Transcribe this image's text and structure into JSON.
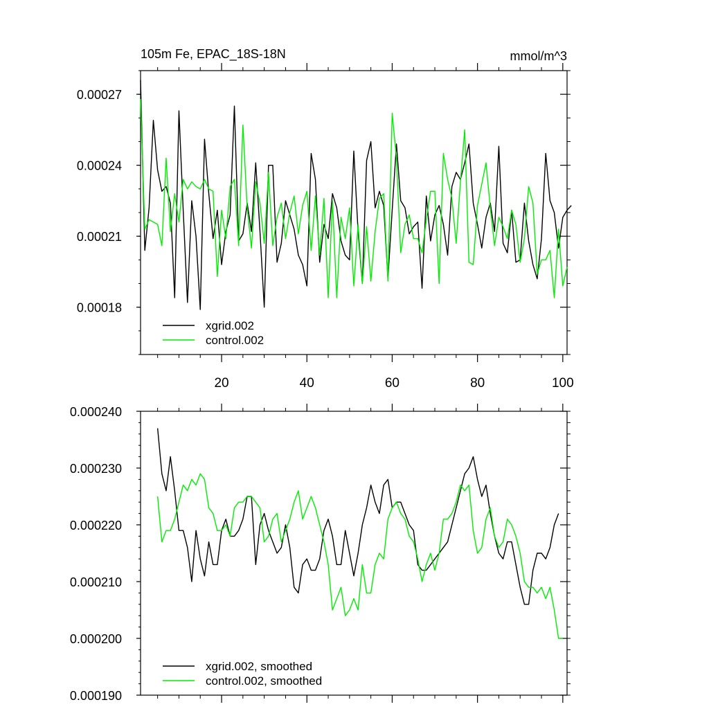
{
  "chart_data": [
    {
      "type": "line",
      "title_left": "105m Fe, EPAC_18S-18N",
      "title_right": "mmol/m^3",
      "xlim": [
        1,
        101
      ],
      "ylim": [
        0.00016,
        0.00028
      ],
      "ytick_values": [
        0.00018,
        0.00021,
        0.00024,
        0.00027
      ],
      "ytick_labels": [
        "0.00018",
        "0.00021",
        "0.00024",
        "0.00027"
      ],
      "xtick_values": [
        20,
        40,
        60,
        80,
        100
      ],
      "xtick_labels": [
        "20",
        "40",
        "60",
        "80",
        "100"
      ],
      "legend_position": "bottom-left",
      "series": [
        {
          "name": "xgrid.002",
          "color": "#000000",
          "x_start": 1,
          "values": [
            0.000276,
            0.000204,
            0.000222,
            0.000259,
            0.000238,
            0.000229,
            0.000231,
            0.000224,
            0.000184,
            0.000263,
            0.000221,
            0.000182,
            0.000225,
            0.00021,
            0.000179,
            0.000251,
            0.000228,
            0.000209,
            0.000221,
            0.000198,
            0.000212,
            0.000219,
            0.000265,
            0.000208,
            0.000211,
            0.000224,
            0.000212,
            0.000241,
            0.000212,
            0.00018,
            0.00024,
            0.00024,
            0.000199,
            0.000207,
            0.000225,
            0.000219,
            0.000213,
            0.000202,
            0.000198,
            0.000189,
            0.000245,
            0.000234,
            0.000199,
            0.000215,
            0.000209,
            0.000228,
            0.000222,
            0.000208,
            0.000202,
            0.0002,
            0.000246,
            0.000212,
            0.00019,
            0.000242,
            0.00025,
            0.000222,
            0.000229,
            0.000223,
            0.000192,
            0.000221,
            0.000249,
            0.000225,
            0.000222,
            0.000211,
            0.000214,
            0.000216,
            0.000188,
            0.000227,
            0.000208,
            0.000219,
            0.000223,
            0.000215,
            0.000202,
            0.000231,
            0.000237,
            0.000234,
            0.000241,
            0.000249,
            0.000224,
            0.000215,
            0.000205,
            0.000218,
            0.000224,
            0.000212,
            0.000248,
            0.000207,
            0.000203,
            0.000221,
            0.000199,
            0.0002,
            0.000224,
            0.000208,
            0.000198,
            0.000192,
            0.000209,
            0.000245,
            0.000225,
            0.00022,
            0.000205,
            0.000218,
            0.000221,
            0.000223
          ]
        },
        {
          "name": "control.002",
          "color": "#00ee00",
          "x_start": 1,
          "values": [
            0.000268,
            0.000213,
            0.000217,
            0.000216,
            0.000215,
            0.000206,
            0.000243,
            0.000212,
            0.000228,
            0.000216,
            0.000234,
            0.00023,
            0.000233,
            0.000231,
            0.00023,
            0.000234,
            0.00023,
            0.000229,
            0.000193,
            0.000221,
            0.000209,
            0.000231,
            0.000234,
            0.000206,
            0.000257,
            0.000222,
            0.000205,
            0.000233,
            0.000224,
            0.000207,
            0.000237,
            0.000206,
            0.000218,
            0.000224,
            0.000209,
            0.00022,
            0.000227,
            0.000211,
            0.000223,
            0.000229,
            0.000204,
            0.000227,
            0.000202,
            0.000226,
            0.000184,
            0.000225,
            0.000184,
            0.000218,
            0.000209,
            0.000222,
            0.000189,
            0.000215,
            0.00019,
            0.000214,
            0.000191,
            0.000212,
            0.000226,
            0.000228,
            0.000191,
            0.000262,
            0.000243,
            0.000203,
            0.000215,
            0.000219,
            0.000209,
            0.000209,
            0.000203,
            0.000217,
            0.000229,
            0.000229,
            0.00019,
            0.000245,
            0.000234,
            0.000226,
            0.000207,
            0.000233,
            0.000255,
            0.000199,
            0.000198,
            0.000223,
            0.000232,
            0.000241,
            0.000222,
            0.000206,
            0.000218,
            0.000214,
            0.000209,
            0.000221,
            0.000215,
            0.000199,
            0.000209,
            0.000231,
            0.000224,
            0.000194,
            0.0002,
            0.0002,
            0.000204,
            0.000184,
            0.000213,
            0.000189,
            0.000197
          ]
        }
      ]
    },
    {
      "type": "line",
      "xlim": [
        1,
        101
      ],
      "ylim": [
        0.00019,
        0.00024
      ],
      "ytick_values": [
        0.0002,
        0.00021,
        0.00022,
        0.00023,
        0.00024,
        0.00019
      ],
      "ytick_labels": [
        "0.000200",
        "0.000210",
        "0.000220",
        "0.000230",
        "0.000240",
        "0.000190"
      ],
      "xtick_values": [
        20,
        40,
        60,
        80,
        100
      ],
      "legend_position": "bottom-left",
      "series": [
        {
          "name": "xgrid.002, smoothed",
          "color": "#000000",
          "x_start": 5,
          "values": [
            0.000237,
            0.000229,
            0.000226,
            0.000232,
            0.000226,
            0.000219,
            0.000219,
            0.000216,
            0.00021,
            0.000219,
            0.000214,
            0.000211,
            0.000217,
            0.000213,
            0.000213,
            0.000219,
            0.000221,
            0.000218,
            0.000218,
            0.000219,
            0.000221,
            0.000225,
            0.000225,
            0.000213,
            0.00022,
            0.000222,
            0.000219,
            0.000217,
            0.000215,
            0.000216,
            0.00022,
            0.000216,
            0.000209,
            0.000208,
            0.000213,
            0.000214,
            0.000212,
            0.000212,
            0.000214,
            0.000219,
            0.000221,
            0.000218,
            0.000213,
            0.000213,
            0.000219,
            0.000215,
            0.000211,
            0.000215,
            0.00022,
            0.000223,
            0.000227,
            0.000224,
            0.000222,
            0.000227,
            0.000228,
            0.000223,
            0.000224,
            0.000224,
            0.000222,
            0.00022,
            0.000219,
            0.000213,
            0.000212,
            0.000212,
            0.000213,
            0.000214,
            0.000215,
            0.000216,
            0.000217,
            0.00022,
            0.000223,
            0.000226,
            0.000229,
            0.00023,
            0.000232,
            0.000228,
            0.000225,
            0.000227,
            0.000222,
            0.000218,
            0.000215,
            0.000214,
            0.000217,
            0.000217,
            0.000213,
            0.000209,
            0.000206,
            0.000206,
            0.000212,
            0.000215,
            0.000215,
            0.000214,
            0.000216,
            0.00022,
            0.000222
          ]
        },
        {
          "name": "control.002, smoothed",
          "color": "#00ee00",
          "x_start": 5,
          "values": [
            0.000225,
            0.000217,
            0.000219,
            0.000219,
            0.000221,
            0.000224,
            0.000227,
            0.000226,
            0.000228,
            0.000227,
            0.000229,
            0.000228,
            0.000223,
            0.000222,
            0.000219,
            0.000219,
            0.00022,
            0.000218,
            0.000223,
            0.000224,
            0.000224,
            0.000225,
            0.000225,
            0.000224,
            0.000223,
            0.000217,
            0.000218,
            0.000221,
            0.000222,
            0.000217,
            0.000219,
            0.000221,
            0.000224,
            0.000226,
            0.000221,
            0.000223,
            0.000225,
            0.000223,
            0.00022,
            0.000217,
            0.000213,
            0.000205,
            0.000207,
            0.000209,
            0.000204,
            0.000205,
            0.000207,
            0.000205,
            0.000213,
            0.000208,
            0.000208,
            0.000213,
            0.000215,
            0.000214,
            0.000221,
            0.000223,
            0.000224,
            0.000222,
            0.000221,
            0.000218,
            0.000217,
            0.000214,
            0.00021,
            0.000213,
            0.000215,
            0.000212,
            0.000215,
            0.000221,
            0.000221,
            0.000222,
            0.000224,
            0.000227,
            0.000226,
            0.000227,
            0.000219,
            0.000215,
            0.000216,
            0.000221,
            0.000223,
            0.000218,
            0.000216,
            0.000217,
            0.000221,
            0.00022,
            0.000218,
            0.000215,
            0.00021,
            0.000209,
            0.000209,
            0.000208,
            0.000209,
            0.000207,
            0.000209,
            0.000205,
            0.0002,
            0.0002
          ]
        }
      ]
    }
  ]
}
